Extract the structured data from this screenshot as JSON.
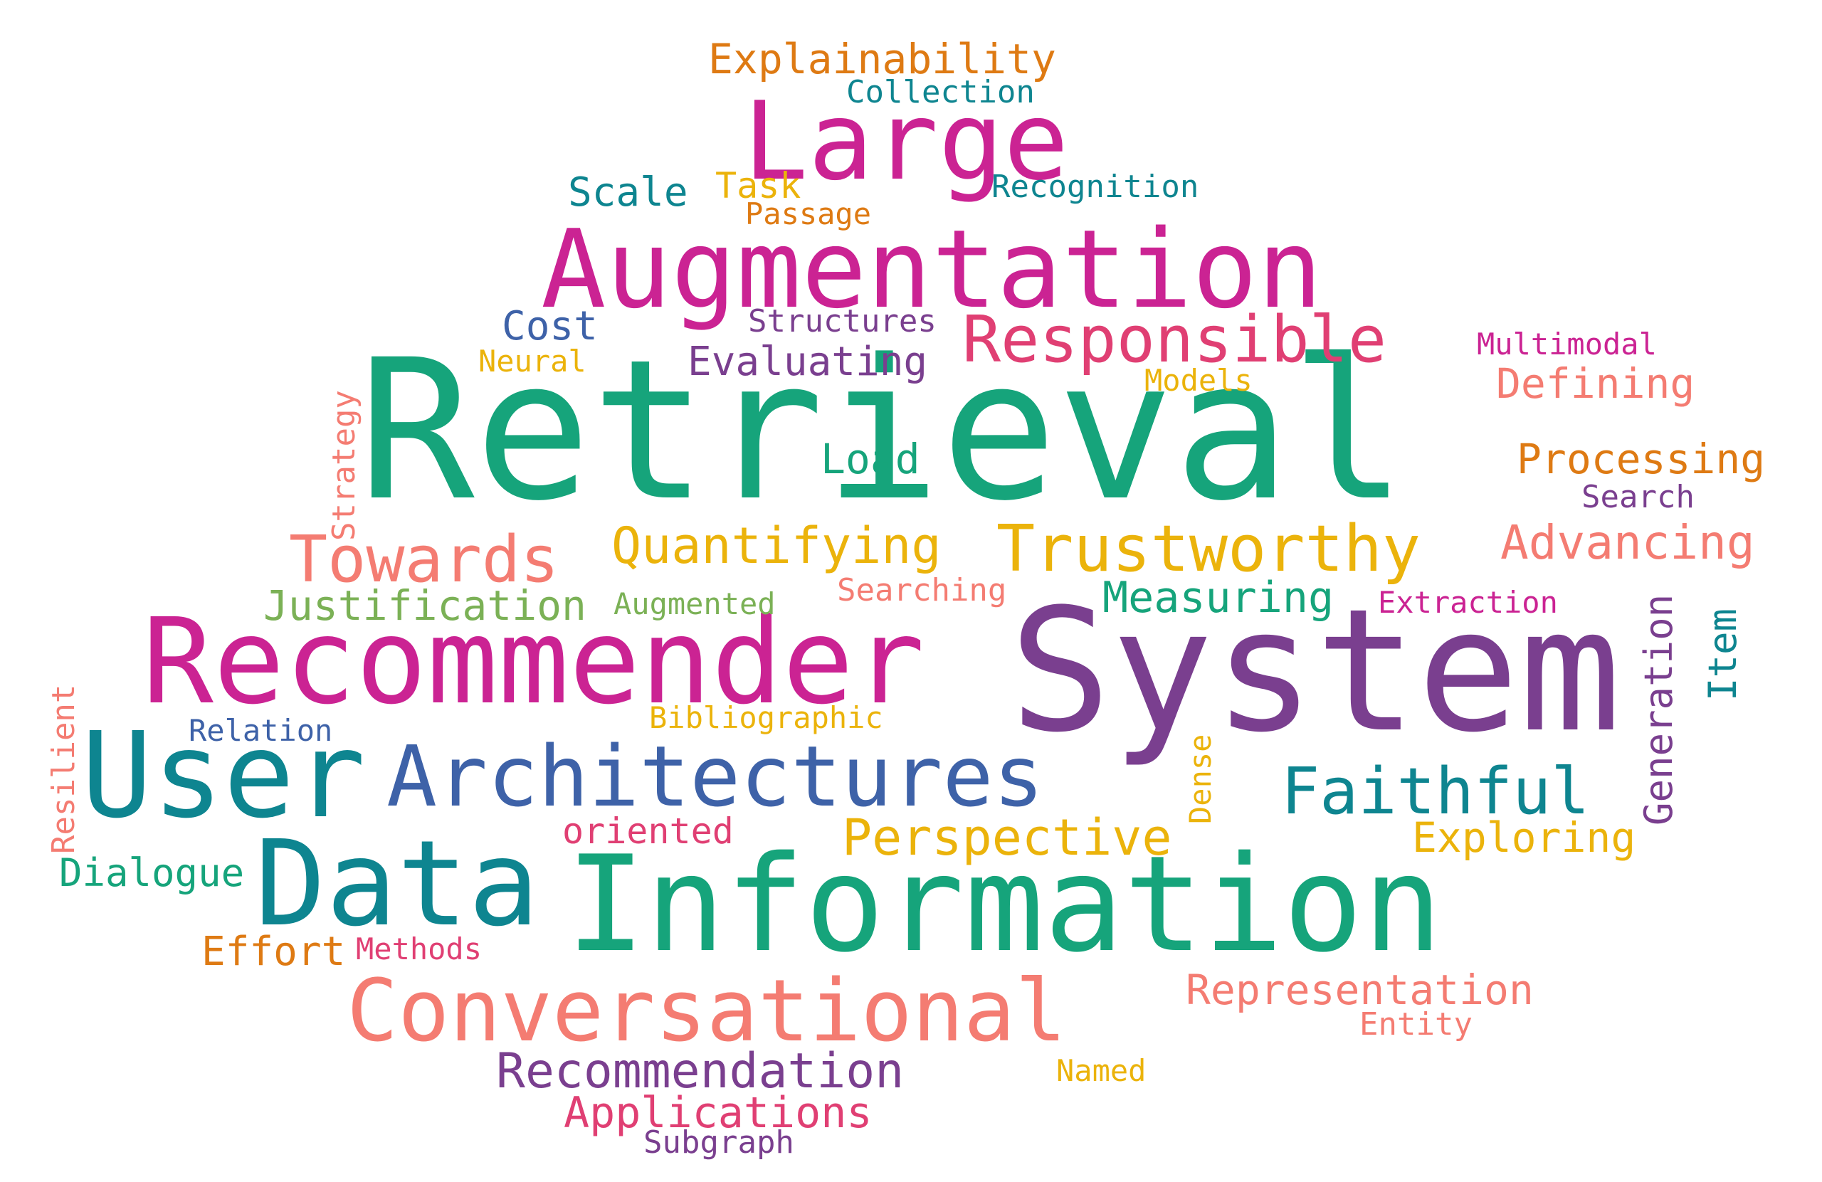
{
  "colors": {
    "green": "#16A47B",
    "magenta": "#CB2393",
    "purple": "#7A3F8F",
    "teal": "#0E8590",
    "blue": "#3E62A8",
    "orange": "#DE7A13",
    "yellow": "#EBB30B",
    "salmon": "#F47C72",
    "pink": "#E03F73",
    "lightgreen": "#7BB156"
  },
  "words": {
    "retrieval": "Retrieval",
    "system": "System",
    "information": "Information",
    "recommender": "Recommender",
    "user": "User",
    "data": "Data",
    "augmentation": "Augmentation",
    "large": "Large",
    "architectures": "Architectures",
    "conversational": "Conversational",
    "responsible": "Responsible",
    "trustworthy": "Trustworthy",
    "towards": "Towards",
    "faithful": "Faithful",
    "quantifying": "Quantifying",
    "perspective": "Perspective",
    "recommendation": "Recommendation",
    "applications": "Applications",
    "explainability": "Explainability",
    "justification": "Justification",
    "measuring": "Measuring",
    "advancing": "Advancing",
    "processing": "Processing",
    "defining": "Defining",
    "representation": "Representation",
    "evaluating": "Evaluating",
    "exploring": "Exploring",
    "generation": "Generation",
    "load": "Load",
    "cost": "Cost",
    "scale": "Scale",
    "task": "Task",
    "dialogue": "Dialogue",
    "effort": "Effort",
    "item": "Item",
    "collection": "Collection",
    "recognition": "Recognition",
    "passage": "Passage",
    "structures": "Structures",
    "neural": "Neural",
    "multimodal": "Multimodal",
    "models": "Models",
    "search": "Search",
    "strategy": "Strategy",
    "searching": "Searching",
    "augmented": "Augmented",
    "extraction": "Extraction",
    "bibliographic": "Bibliographic",
    "relation": "Relation",
    "resilient": "Resilient",
    "dense": "Dense",
    "oriented": "oriented",
    "methods": "Methods",
    "entity": "Entity",
    "named": "Named",
    "subgraph": "Subgraph"
  }
}
